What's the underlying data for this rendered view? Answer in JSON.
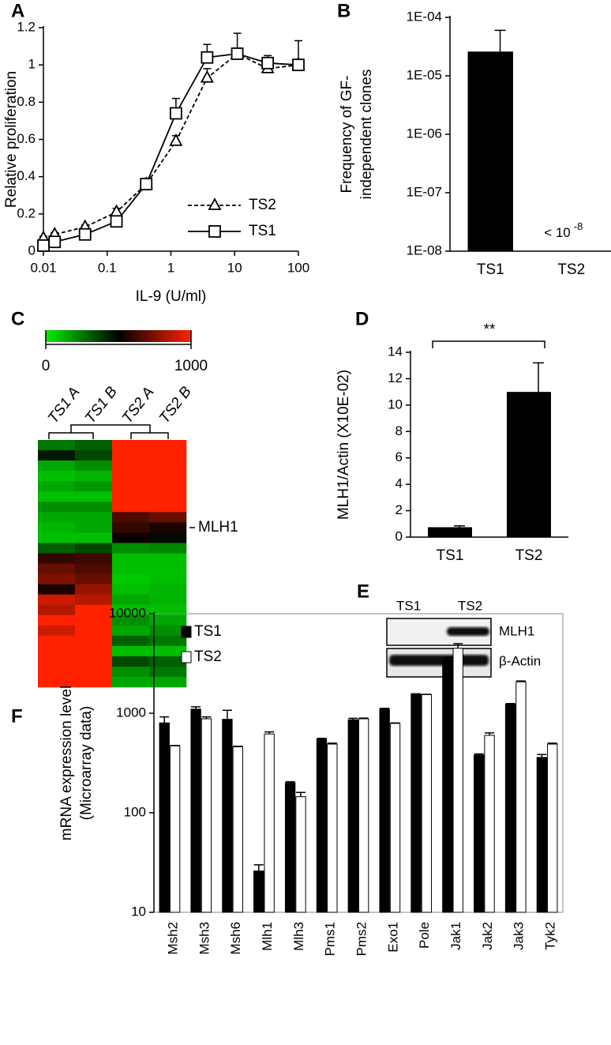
{
  "chart_data": [
    {
      "panel": "A",
      "type": "line",
      "xlabel": "IL-9 (U/ml)",
      "ylabel": "Relative proliferation",
      "log_x": true,
      "x": [
        0.01,
        0.015,
        0.045,
        0.14,
        0.41,
        1.2,
        3.7,
        11,
        33,
        100
      ],
      "series": [
        {
          "name": "TS2",
          "color": "#000000",
          "dash": true,
          "marker": "triangle",
          "values": [
            0.07,
            0.09,
            0.13,
            0.21,
            0.36,
            0.59,
            0.93,
            1.06,
            0.98,
            1.0
          ],
          "errors": [
            0.01,
            0.01,
            0.01,
            0.02,
            0.02,
            0.03,
            0.05,
            0.03,
            0.02,
            0.03
          ]
        },
        {
          "name": "TS1",
          "color": "#000000",
          "dash": false,
          "marker": "square",
          "values": [
            0.03,
            0.05,
            0.09,
            0.16,
            0.36,
            0.74,
            1.04,
            1.06,
            1.01,
            1.0
          ],
          "errors": [
            0.02,
            0.02,
            0.03,
            0.03,
            0.03,
            0.08,
            0.07,
            0.11,
            0.04,
            0.13
          ]
        }
      ],
      "xlim": [
        0.01,
        100
      ],
      "xticks": [
        0.01,
        0.1,
        1,
        10,
        100
      ],
      "ylim": [
        0,
        1.2
      ],
      "yticks": [
        0,
        0.2,
        0.4,
        0.6,
        0.8,
        1,
        1.2
      ]
    },
    {
      "panel": "B",
      "type": "bar",
      "ylabel": [
        "Frequency of GF-",
        "independent clones"
      ],
      "log_y": true,
      "categories": [
        "TS1",
        "TS2"
      ],
      "values": [
        2.6e-05,
        null
      ],
      "errors": [
        3.4e-05,
        null
      ],
      "color": "#000000",
      "ylim": [
        1e-08,
        0.0001
      ],
      "yticks": [
        {
          "value": 1e-08,
          "label": "1E-08"
        },
        {
          "value": 1e-07,
          "label": "1E-07"
        },
        {
          "value": 1e-06,
          "label": "1E-06"
        },
        {
          "value": 1e-05,
          "label": "1E-05"
        },
        {
          "value": 0.0001,
          "label": "1E-04"
        }
      ],
      "annotations": [
        {
          "text": "< 10",
          "sup": "-8"
        }
      ]
    },
    {
      "panel": "C",
      "type": "heatmap",
      "columns": [
        "TS1 A",
        "TS1 B",
        "TS2 A",
        "TS2 B"
      ],
      "zlim": [
        0,
        1000
      ],
      "zticks": [
        0,
        1000
      ],
      "row_label": "MLH1",
      "z": [
        [
          250,
          300,
          1000,
          1000
        ],
        [
          450,
          350,
          1000,
          1000
        ],
        [
          150,
          200,
          1000,
          1000
        ],
        [
          100,
          120,
          1000,
          1000
        ],
        [
          150,
          180,
          1000,
          1000
        ],
        [
          100,
          100,
          1000,
          1000
        ],
        [
          200,
          200,
          1000,
          1000
        ],
        [
          150,
          150,
          650,
          700
        ],
        [
          120,
          150,
          600,
          550
        ],
        [
          100,
          100,
          520,
          480
        ],
        [
          300,
          350,
          200,
          220
        ],
        [
          600,
          620,
          100,
          100
        ],
        [
          700,
          650,
          100,
          100
        ],
        [
          750,
          700,
          80,
          100
        ],
        [
          550,
          800,
          100,
          120
        ],
        [
          900,
          850,
          150,
          120
        ],
        [
          850,
          1000,
          100,
          100
        ],
        [
          1000,
          1000,
          200,
          150
        ],
        [
          900,
          1000,
          150,
          200
        ],
        [
          1000,
          1000,
          300,
          250
        ],
        [
          1000,
          1000,
          100,
          100
        ],
        [
          1000,
          1000,
          350,
          300
        ],
        [
          1000,
          1000,
          200,
          250
        ],
        [
          1000,
          1000,
          150,
          150
        ]
      ]
    },
    {
      "panel": "D",
      "type": "bar",
      "ylabel": "MLH1/Actin (X10E-02)",
      "categories": [
        "TS1",
        "TS2"
      ],
      "values": [
        0.75,
        11.0
      ],
      "errors": [
        0.1,
        2.2
      ],
      "color": "#000000",
      "ylim": [
        0,
        14
      ],
      "yticks": [
        0,
        2,
        4,
        6,
        8,
        10,
        12,
        14
      ],
      "significance": "**"
    },
    {
      "panel": "F",
      "type": "grouped_bar",
      "ylabel": [
        "mRNA expression level",
        "(Microarray data)"
      ],
      "log_y": true,
      "categories": [
        "Msh2",
        "Msh3",
        "Msh6",
        "Mlh1",
        "Mlh3",
        "Pms1",
        "Pms2",
        "Exo1",
        "Pole",
        "Jak1",
        "Jak2",
        "Jak3",
        "Tyk2"
      ],
      "series": [
        {
          "name": "TS1",
          "color": "#000000",
          "values": [
            800,
            1100,
            870,
            26,
            200,
            550,
            860,
            1100,
            1560,
            3400,
            380,
            1230,
            360
          ],
          "errors": [
            120,
            60,
            200,
            4,
            5,
            10,
            30,
            20,
            10,
            250,
            10,
            20,
            25
          ]
        },
        {
          "name": "TS2",
          "color": "#ffffff",
          "values": [
            470,
            880,
            460,
            620,
            145,
            490,
            880,
            790,
            1540,
            4500,
            600,
            2070,
            490
          ],
          "errors": [
            5,
            40,
            5,
            30,
            15,
            10,
            15,
            10,
            10,
            500,
            35,
            40,
            10
          ]
        }
      ],
      "ylim": [
        10,
        10000
      ],
      "yticks": [
        10,
        100,
        1000,
        10000
      ]
    }
  ],
  "blot": {
    "panel": "E",
    "lanes": [
      "TS1",
      "TS2"
    ],
    "rows": [
      "MLH1",
      "β-Actin"
    ]
  }
}
